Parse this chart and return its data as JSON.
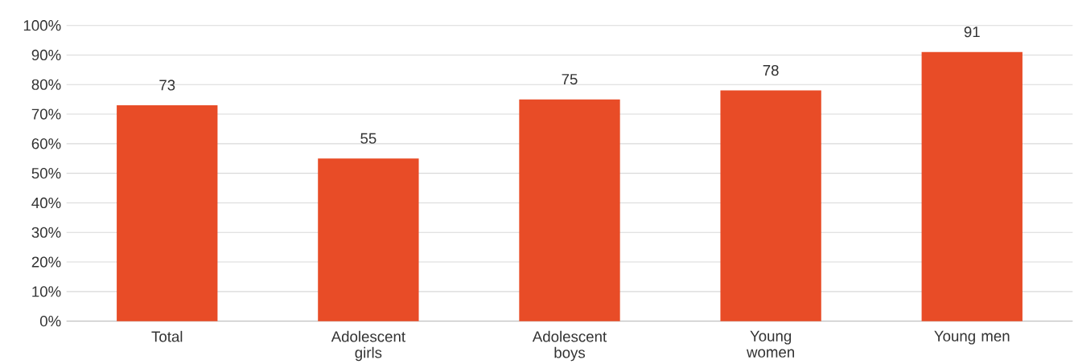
{
  "chart_data": {
    "type": "bar",
    "categories": [
      "Total",
      "Adolescent girls",
      "Adolescent boys",
      "Young women",
      "Young men"
    ],
    "values": [
      73,
      55,
      75,
      78,
      91
    ],
    "color": "#e84c27",
    "ylim": [
      0,
      100
    ],
    "yticks": [
      {
        "value": 0,
        "label": "0%"
      },
      {
        "value": 10,
        "label": "10%"
      },
      {
        "value": 20,
        "label": "20%"
      },
      {
        "value": 30,
        "label": "30%"
      },
      {
        "value": 40,
        "label": "40%"
      },
      {
        "value": 50,
        "label": "50%"
      },
      {
        "value": 60,
        "label": "60%"
      },
      {
        "value": 70,
        "label": "70%"
      },
      {
        "value": 80,
        "label": "80%"
      },
      {
        "value": 90,
        "label": "90%"
      },
      {
        "value": 100,
        "label": "100%"
      }
    ],
    "grid": "y",
    "data_labels": true
  }
}
